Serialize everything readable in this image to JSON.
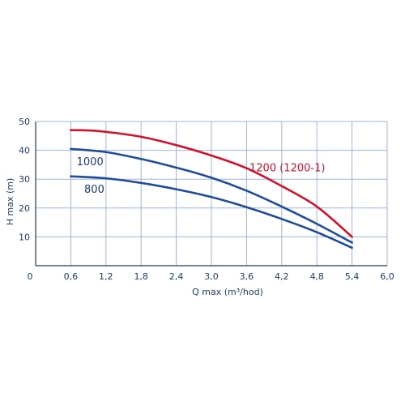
{
  "chart_data": {
    "type": "line",
    "xlabel": "Q max (m³/hod)",
    "ylabel": "H max (m)",
    "xlim": [
      0,
      6.0
    ],
    "ylim": [
      0,
      50
    ],
    "x_ticks": [
      "0",
      "0,6",
      "1,2",
      "1,8",
      "2,4",
      "3,0",
      "3,6",
      "4,2",
      "4,8",
      "5,4",
      "6,0"
    ],
    "y_ticks": [
      "10",
      "20",
      "30",
      "40",
      "50"
    ],
    "grid": true,
    "legend": "none",
    "series": [
      {
        "name": "1200 (1200-1)",
        "color": "#d0122c",
        "x": [
          0.6,
          0.9,
          1.2,
          1.8,
          2.4,
          3.0,
          3.6,
          4.2,
          4.8,
          5.4
        ],
        "y": [
          47,
          46.9,
          46.4,
          44.7,
          41.8,
          38.2,
          33.8,
          27.6,
          20.5,
          10
        ]
      },
      {
        "name": "1000",
        "color": "#1e4b9c",
        "x": [
          0.6,
          1.2,
          1.8,
          2.4,
          3.0,
          3.6,
          4.2,
          4.8,
          5.4
        ],
        "y": [
          40.5,
          39.4,
          37,
          34,
          30.5,
          26,
          20.5,
          14.5,
          8
        ]
      },
      {
        "name": "800",
        "color": "#1e4b9c",
        "x": [
          0.6,
          1.2,
          1.8,
          2.4,
          3.0,
          3.6,
          4.2,
          4.8,
          5.4
        ],
        "y": [
          31,
          30.3,
          28.7,
          26.5,
          23.8,
          20.3,
          16.2,
          11.6,
          6.2
        ]
      }
    ],
    "labels": [
      {
        "text": "1200 (1200-1)",
        "x": 3.65,
        "y": 32.7,
        "color": "#d0122c"
      },
      {
        "text": "1000",
        "x": 0.7,
        "y": 34.8,
        "color": "#1f3a6b"
      },
      {
        "text": "800",
        "x": 0.83,
        "y": 25.3,
        "color": "#1f3a6b"
      }
    ]
  }
}
